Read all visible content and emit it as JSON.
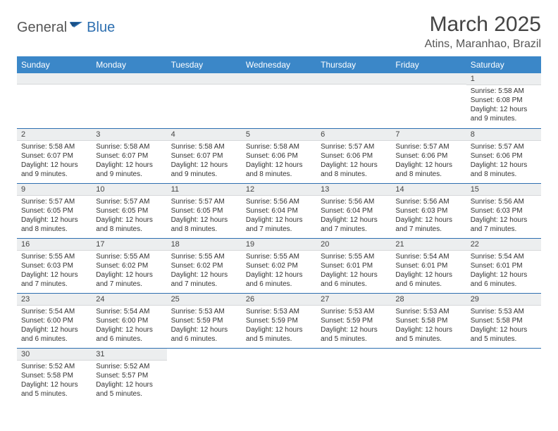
{
  "brand": {
    "part1": "General",
    "part2": "Blue"
  },
  "title": "March 2025",
  "location": "Atins, Maranhao, Brazil",
  "colors": {
    "header_bg": "#3b87c8",
    "border": "#2d6fb0",
    "daynum_bg": "#eceeef",
    "text": "#333333"
  },
  "weekdays": [
    "Sunday",
    "Monday",
    "Tuesday",
    "Wednesday",
    "Thursday",
    "Friday",
    "Saturday"
  ],
  "weeks": [
    [
      null,
      null,
      null,
      null,
      null,
      null,
      {
        "n": "1",
        "sr": "5:58 AM",
        "ss": "6:08 PM",
        "dl": "12 hours and 9 minutes."
      }
    ],
    [
      {
        "n": "2",
        "sr": "5:58 AM",
        "ss": "6:07 PM",
        "dl": "12 hours and 9 minutes."
      },
      {
        "n": "3",
        "sr": "5:58 AM",
        "ss": "6:07 PM",
        "dl": "12 hours and 9 minutes."
      },
      {
        "n": "4",
        "sr": "5:58 AM",
        "ss": "6:07 PM",
        "dl": "12 hours and 9 minutes."
      },
      {
        "n": "5",
        "sr": "5:58 AM",
        "ss": "6:06 PM",
        "dl": "12 hours and 8 minutes."
      },
      {
        "n": "6",
        "sr": "5:57 AM",
        "ss": "6:06 PM",
        "dl": "12 hours and 8 minutes."
      },
      {
        "n": "7",
        "sr": "5:57 AM",
        "ss": "6:06 PM",
        "dl": "12 hours and 8 minutes."
      },
      {
        "n": "8",
        "sr": "5:57 AM",
        "ss": "6:06 PM",
        "dl": "12 hours and 8 minutes."
      }
    ],
    [
      {
        "n": "9",
        "sr": "5:57 AM",
        "ss": "6:05 PM",
        "dl": "12 hours and 8 minutes."
      },
      {
        "n": "10",
        "sr": "5:57 AM",
        "ss": "6:05 PM",
        "dl": "12 hours and 8 minutes."
      },
      {
        "n": "11",
        "sr": "5:57 AM",
        "ss": "6:05 PM",
        "dl": "12 hours and 8 minutes."
      },
      {
        "n": "12",
        "sr": "5:56 AM",
        "ss": "6:04 PM",
        "dl": "12 hours and 7 minutes."
      },
      {
        "n": "13",
        "sr": "5:56 AM",
        "ss": "6:04 PM",
        "dl": "12 hours and 7 minutes."
      },
      {
        "n": "14",
        "sr": "5:56 AM",
        "ss": "6:03 PM",
        "dl": "12 hours and 7 minutes."
      },
      {
        "n": "15",
        "sr": "5:56 AM",
        "ss": "6:03 PM",
        "dl": "12 hours and 7 minutes."
      }
    ],
    [
      {
        "n": "16",
        "sr": "5:55 AM",
        "ss": "6:03 PM",
        "dl": "12 hours and 7 minutes."
      },
      {
        "n": "17",
        "sr": "5:55 AM",
        "ss": "6:02 PM",
        "dl": "12 hours and 7 minutes."
      },
      {
        "n": "18",
        "sr": "5:55 AM",
        "ss": "6:02 PM",
        "dl": "12 hours and 7 minutes."
      },
      {
        "n": "19",
        "sr": "5:55 AM",
        "ss": "6:02 PM",
        "dl": "12 hours and 6 minutes."
      },
      {
        "n": "20",
        "sr": "5:55 AM",
        "ss": "6:01 PM",
        "dl": "12 hours and 6 minutes."
      },
      {
        "n": "21",
        "sr": "5:54 AM",
        "ss": "6:01 PM",
        "dl": "12 hours and 6 minutes."
      },
      {
        "n": "22",
        "sr": "5:54 AM",
        "ss": "6:01 PM",
        "dl": "12 hours and 6 minutes."
      }
    ],
    [
      {
        "n": "23",
        "sr": "5:54 AM",
        "ss": "6:00 PM",
        "dl": "12 hours and 6 minutes."
      },
      {
        "n": "24",
        "sr": "5:54 AM",
        "ss": "6:00 PM",
        "dl": "12 hours and 6 minutes."
      },
      {
        "n": "25",
        "sr": "5:53 AM",
        "ss": "5:59 PM",
        "dl": "12 hours and 6 minutes."
      },
      {
        "n": "26",
        "sr": "5:53 AM",
        "ss": "5:59 PM",
        "dl": "12 hours and 5 minutes."
      },
      {
        "n": "27",
        "sr": "5:53 AM",
        "ss": "5:59 PM",
        "dl": "12 hours and 5 minutes."
      },
      {
        "n": "28",
        "sr": "5:53 AM",
        "ss": "5:58 PM",
        "dl": "12 hours and 5 minutes."
      },
      {
        "n": "29",
        "sr": "5:53 AM",
        "ss": "5:58 PM",
        "dl": "12 hours and 5 minutes."
      }
    ],
    [
      {
        "n": "30",
        "sr": "5:52 AM",
        "ss": "5:58 PM",
        "dl": "12 hours and 5 minutes."
      },
      {
        "n": "31",
        "sr": "5:52 AM",
        "ss": "5:57 PM",
        "dl": "12 hours and 5 minutes."
      },
      null,
      null,
      null,
      null,
      null
    ]
  ],
  "labels": {
    "sunrise": "Sunrise:",
    "sunset": "Sunset:",
    "daylight": "Daylight:"
  }
}
